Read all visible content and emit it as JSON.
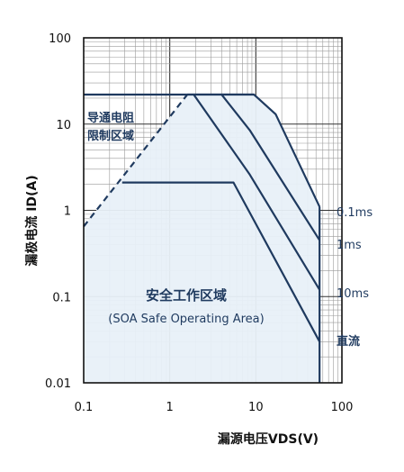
{
  "chart_data": {
    "type": "line",
    "xscale": "log",
    "yscale": "log",
    "xlim": [
      0.1,
      100
    ],
    "ylim": [
      0.01,
      100
    ],
    "grid": true,
    "xlabel": "漏源电压VDS(V)",
    "ylabel": "漏极电流 ID(A)",
    "x_ticks": [
      "0.1",
      "1",
      "10",
      "100"
    ],
    "y_ticks": [
      "100",
      "10",
      "1",
      "0.1",
      "0.01"
    ],
    "rds_on_line": {
      "x": [
        0.1,
        1.6
      ],
      "y": [
        0.65,
        22
      ]
    },
    "current_limit": 22,
    "vds_max": 55,
    "series": [
      {
        "name": "0.1ms",
        "x": [
          1.6,
          9.5,
          17,
          55
        ],
        "y": [
          22,
          22,
          13,
          1.1
        ]
      },
      {
        "name": "1ms",
        "x": [
          4.0,
          8.5,
          55
        ],
        "y": [
          22,
          8.5,
          0.45
        ]
      },
      {
        "name": "10ms",
        "x": [
          1.9,
          8.5,
          55
        ],
        "y": [
          22,
          2.6,
          0.12
        ]
      },
      {
        "name": "直流",
        "x": [
          0.28,
          5.5,
          55
        ],
        "y": [
          2.1,
          2.1,
          0.03
        ]
      }
    ],
    "annotations": {
      "rds_region": [
        "导通电阻",
        "限制区域"
      ],
      "soa_title": "安全工作区域",
      "soa_subtitle": "(SOA Safe Operating Area)"
    },
    "colors": {
      "line": "#1f3a5f",
      "fill": "#e8f0f8",
      "grid": "#9a9a9a",
      "frame": "#111111"
    }
  }
}
